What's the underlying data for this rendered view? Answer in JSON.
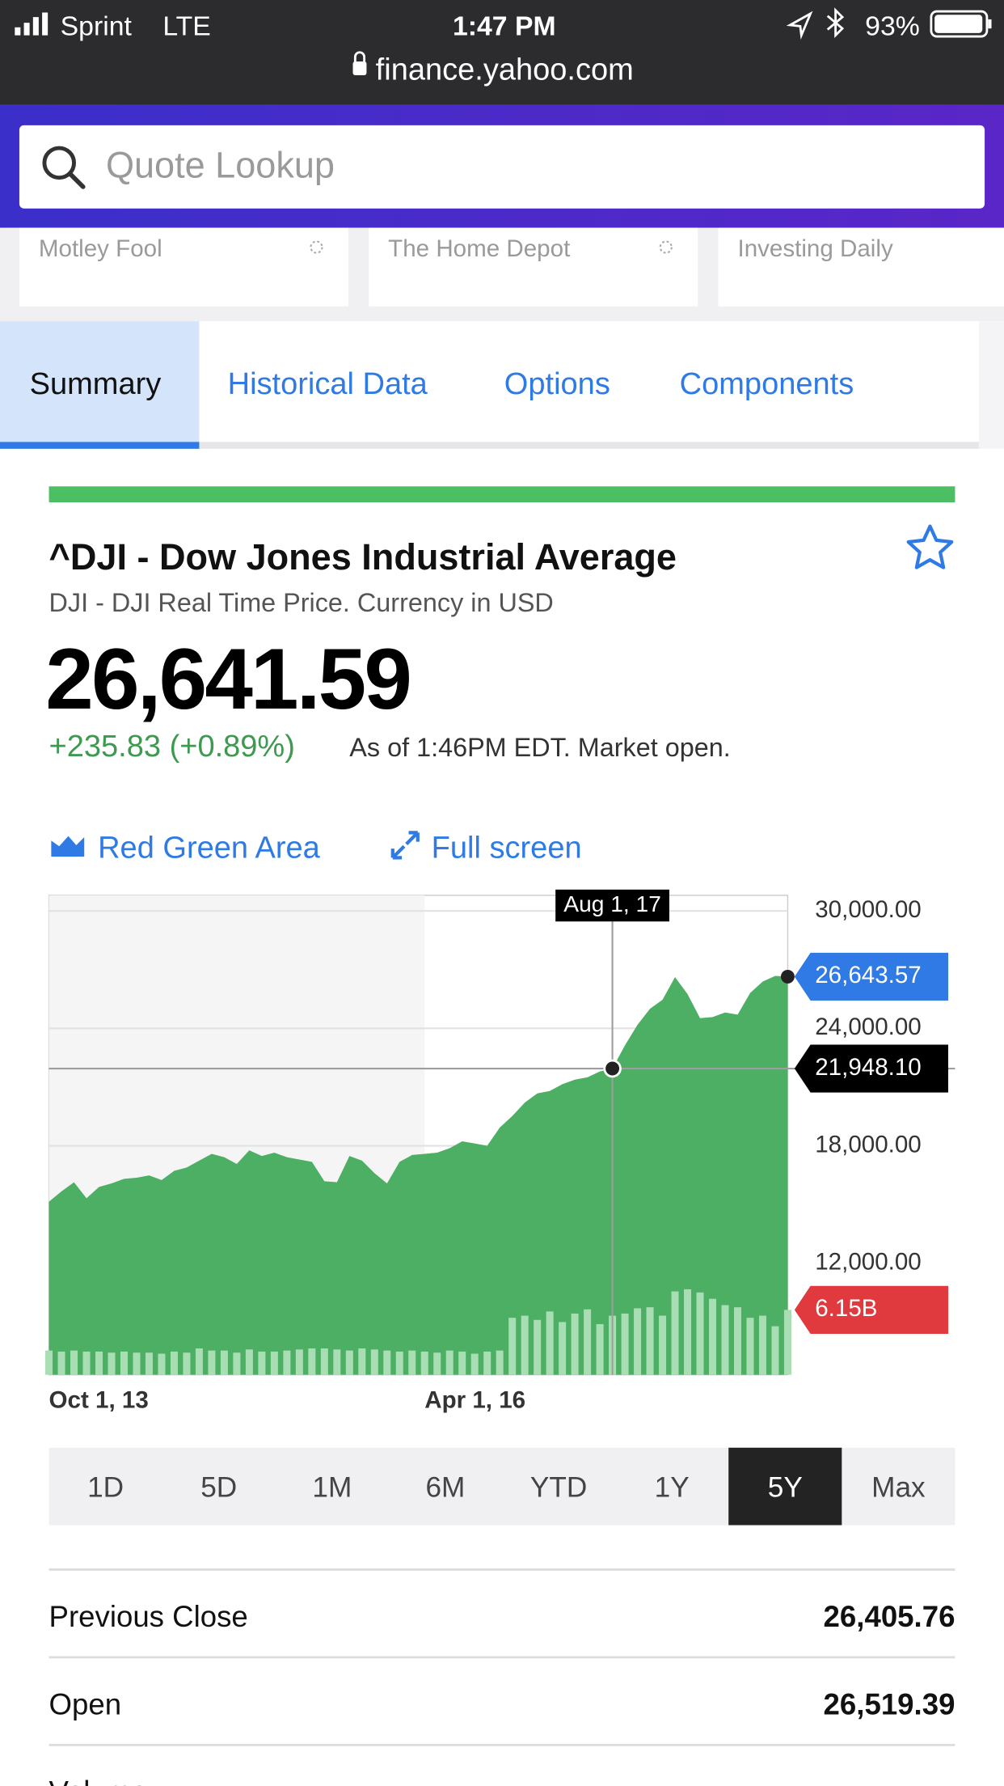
{
  "status_bar": {
    "carrier": "Sprint",
    "network": "LTE",
    "time": "1:47 PM",
    "battery": "93%"
  },
  "url": "finance.yahoo.com",
  "search": {
    "placeholder": "Quote Lookup"
  },
  "news_sources": [
    "Motley Fool",
    "The Home Depot",
    "Investing Daily"
  ],
  "tabs": [
    "Summary",
    "Historical Data",
    "Options",
    "Components"
  ],
  "quote": {
    "title": "^DJI - Dow Jones Industrial Average",
    "subtitle": "DJI - DJI Real Time Price. Currency in USD",
    "price": "26,641.59",
    "change": "+235.83 (+0.89%)",
    "as_of": "As of 1:46PM EDT. Market open."
  },
  "chart_controls": [
    "Red Green Area",
    "Full screen"
  ],
  "chart_data": {
    "type": "area",
    "annotation": "Aug 1, 17",
    "categories": [
      "Oct 1, 13",
      null,
      null,
      null,
      null,
      null,
      null,
      null,
      null,
      null,
      null,
      null,
      null,
      null,
      null,
      null,
      null,
      null,
      null,
      null,
      null,
      null,
      null,
      null,
      null,
      null,
      null,
      null,
      null,
      null,
      "Apr 1, 16",
      null,
      null,
      null,
      null,
      null,
      null,
      null,
      null,
      null,
      null,
      null,
      null,
      null,
      null,
      null,
      null,
      null,
      null,
      null,
      null,
      null,
      null,
      null,
      null,
      null,
      null,
      null,
      null,
      null
    ],
    "series": [
      {
        "color": "#4caf63",
        "values": [
          15146,
          15670,
          16137,
          15320,
          15900,
          16080,
          16310,
          16370,
          16490,
          16250,
          16720,
          16890,
          17240,
          17590,
          17420,
          17070,
          17770,
          17480,
          17650,
          17420,
          17300,
          17180,
          16190,
          16140,
          17480,
          17240,
          16600,
          16080,
          17180,
          17530,
          17590,
          17650,
          17880,
          18230,
          18120,
          18000,
          18930,
          19520,
          20210,
          20680,
          20800,
          21150,
          21380,
          21500,
          21800,
          21948.1,
          23130,
          24180,
          25000,
          25460,
          26620,
          25750,
          24520,
          24580,
          24810,
          24700,
          25810,
          26390,
          26680,
          26643.57
        ],
        "value_labels": [
          null,
          null,
          null,
          null,
          null,
          null,
          null,
          null,
          null,
          null,
          null,
          null,
          null,
          null,
          null,
          null,
          null,
          null,
          null,
          null,
          null,
          null,
          null,
          null,
          null,
          null,
          null,
          null,
          null,
          null,
          null,
          null,
          null,
          null,
          null,
          null,
          null,
          null,
          null,
          null,
          null,
          null,
          null,
          null,
          null,
          "21,948.10",
          null,
          null,
          null,
          null,
          null,
          null,
          null,
          null,
          null,
          null,
          null,
          null,
          null,
          "26,643.57"
        ]
      },
      {
        "color": "#a9ddb3",
        "values": [
          2.3,
          2.2,
          2.3,
          2.2,
          2.2,
          2.1,
          2.2,
          2.1,
          2.1,
          2.0,
          2.2,
          2.1,
          2.5,
          2.3,
          2.3,
          2.1,
          2.4,
          2.2,
          2.2,
          2.3,
          2.4,
          2.5,
          2.5,
          2.4,
          2.3,
          2.5,
          2.4,
          2.3,
          2.2,
          2.3,
          2.2,
          2.1,
          2.3,
          2.2,
          2.0,
          2.2,
          2.3,
          5.4,
          5.6,
          5.2,
          6.0,
          5.0,
          5.8,
          6.2,
          4.8,
          5.6,
          5.8,
          6.3,
          6.4,
          5.6,
          7.9,
          8.1,
          7.8,
          7.2,
          6.6,
          6.4,
          5.4,
          5.6,
          4.6,
          6.15
        ],
        "value_labels": [
          null,
          null,
          null,
          null,
          null,
          null,
          null,
          null,
          null,
          null,
          null,
          null,
          null,
          null,
          null,
          null,
          null,
          null,
          null,
          null,
          null,
          null,
          null,
          null,
          null,
          null,
          null,
          null,
          null,
          null,
          null,
          null,
          null,
          null,
          null,
          null,
          null,
          null,
          null,
          null,
          null,
          null,
          null,
          null,
          null,
          null,
          null,
          null,
          null,
          null,
          null,
          null,
          null,
          null,
          null,
          null,
          null,
          null,
          null,
          "6.15B"
        ]
      }
    ],
    "ylim": [
      6300,
      30800
    ],
    "yticks": [
      {
        "value": 12000,
        "label": "12,000.00"
      },
      {
        "value": 18000,
        "label": "18,000.00"
      },
      {
        "value": 24000,
        "label": "24,000.00"
      },
      {
        "value": 30000,
        "label": "30,000.00"
      }
    ],
    "grid": true
  },
  "ranges": [
    "1D",
    "5D",
    "1M",
    "6M",
    "YTD",
    "1Y",
    "5Y",
    "Max"
  ],
  "selected_range": 6,
  "stats": [
    {
      "label": "Previous Close",
      "value": "26,405.76"
    },
    {
      "label": "Open",
      "value": "26,519.39"
    },
    {
      "label": "Volume"
    }
  ]
}
